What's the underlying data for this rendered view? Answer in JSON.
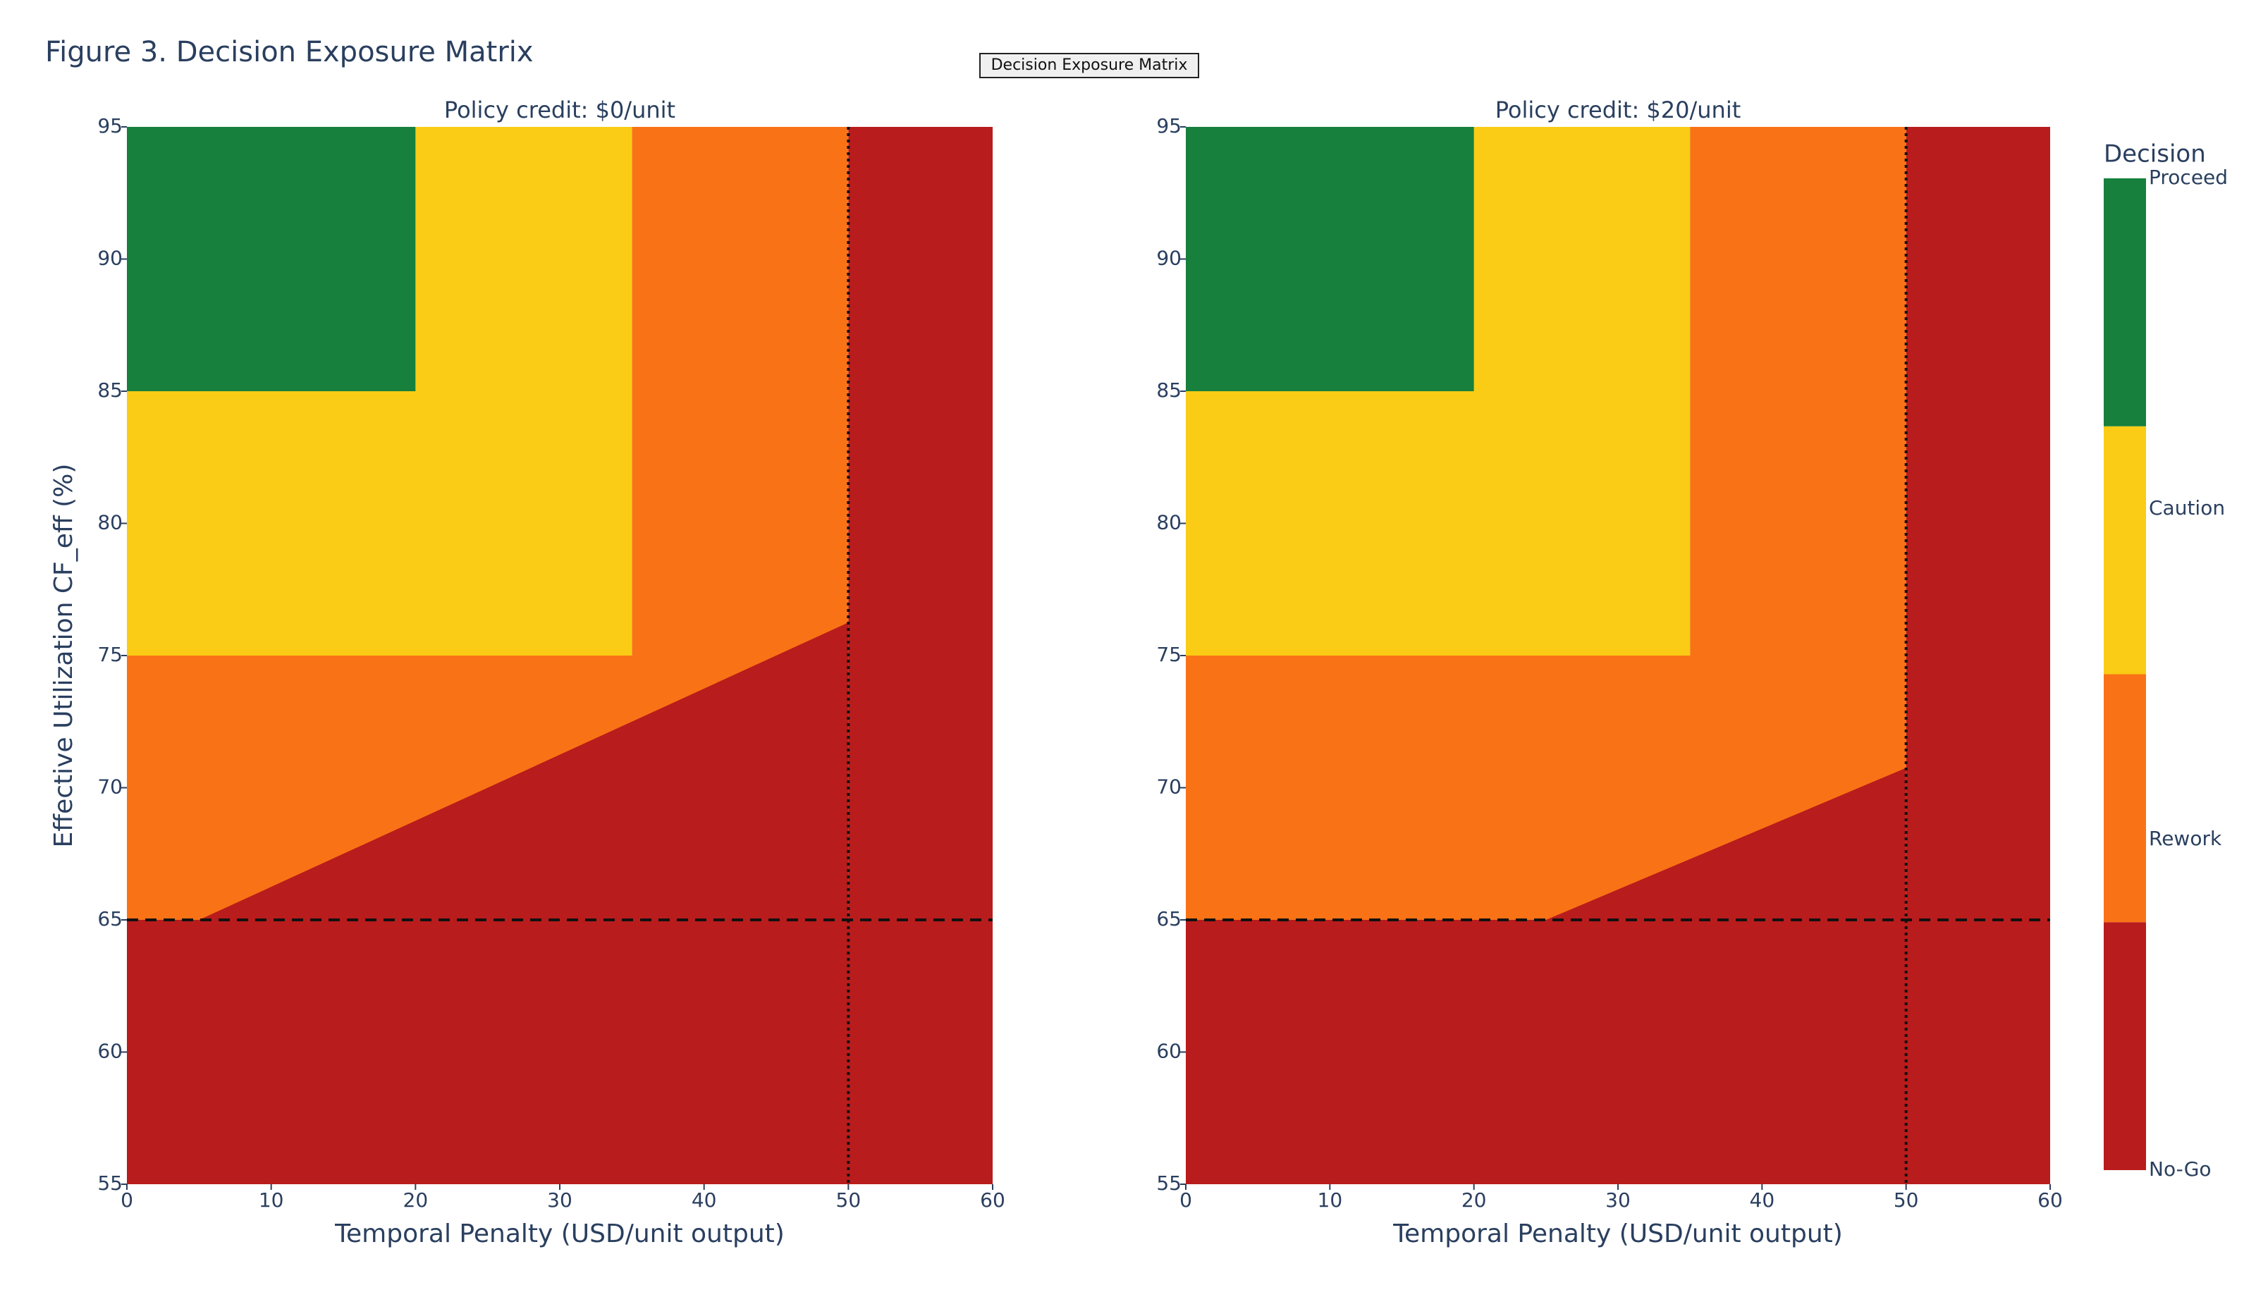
{
  "figure_title": "Figure 3. Decision Exposure Matrix",
  "annotation": "Decision Exposure Matrix",
  "colorbar": {
    "title": "Decision",
    "labels": [
      "No-Go",
      "Rework",
      "Caution",
      "Proceed"
    ],
    "colors": [
      "#b91c1c",
      "#f97316",
      "#facc15",
      "#16803c"
    ]
  },
  "chart_data": [
    {
      "type": "heatmap",
      "title": "Policy credit: $0/unit",
      "xlabel": "Temporal Penalty (USD/unit output)",
      "ylabel": "Effective Utilization CF_eff (%)",
      "xlim": [
        0,
        60
      ],
      "ylim": [
        55,
        95
      ],
      "xticks": [
        0,
        10,
        20,
        30,
        40,
        50,
        60
      ],
      "yticks": [
        55,
        60,
        65,
        70,
        75,
        80,
        85,
        90,
        95
      ],
      "hline": 65,
      "vline": 50,
      "rects": [
        {
          "level": 0,
          "x": [
            0,
            60
          ],
          "y": [
            55,
            65
          ]
        },
        {
          "level": 0,
          "x": [
            50,
            60
          ],
          "y": [
            65,
            95
          ]
        },
        {
          "level": 1,
          "x": [
            0,
            50
          ],
          "y": [
            65,
            75
          ]
        },
        {
          "level": 1,
          "x": [
            35,
            50
          ],
          "y": [
            75,
            95
          ]
        },
        {
          "level": 2,
          "x": [
            0,
            35
          ],
          "y": [
            75,
            85
          ]
        },
        {
          "level": 2,
          "x": [
            20,
            35
          ],
          "y": [
            85,
            95
          ]
        },
        {
          "level": 3,
          "x": [
            0,
            20
          ],
          "y": [
            85,
            95
          ]
        }
      ],
      "boundary": {
        "level": 0,
        "x": [
          5,
          50
        ],
        "y": [
          65,
          76.25
        ]
      }
    },
    {
      "type": "heatmap",
      "title": "Policy credit: $20/unit",
      "xlabel": "Temporal Penalty (USD/unit output)",
      "xlim": [
        0,
        60
      ],
      "ylim": [
        55,
        95
      ],
      "xticks": [
        0,
        10,
        20,
        30,
        40,
        50,
        60
      ],
      "yticks": [
        55,
        60,
        65,
        70,
        75,
        80,
        85,
        90,
        95
      ],
      "hline": 65,
      "vline": 50,
      "rects": [
        {
          "level": 0,
          "x": [
            0,
            60
          ],
          "y": [
            55,
            65
          ]
        },
        {
          "level": 0,
          "x": [
            50,
            60
          ],
          "y": [
            65,
            95
          ]
        },
        {
          "level": 1,
          "x": [
            0,
            50
          ],
          "y": [
            65,
            75
          ]
        },
        {
          "level": 1,
          "x": [
            35,
            50
          ],
          "y": [
            75,
            95
          ]
        },
        {
          "level": 2,
          "x": [
            0,
            35
          ],
          "y": [
            75,
            85
          ]
        },
        {
          "level": 2,
          "x": [
            20,
            35
          ],
          "y": [
            85,
            95
          ]
        },
        {
          "level": 3,
          "x": [
            0,
            20
          ],
          "y": [
            85,
            95
          ]
        }
      ],
      "boundary": {
        "level": 0,
        "x": [
          25,
          50
        ],
        "y": [
          65,
          70.75
        ]
      }
    }
  ]
}
